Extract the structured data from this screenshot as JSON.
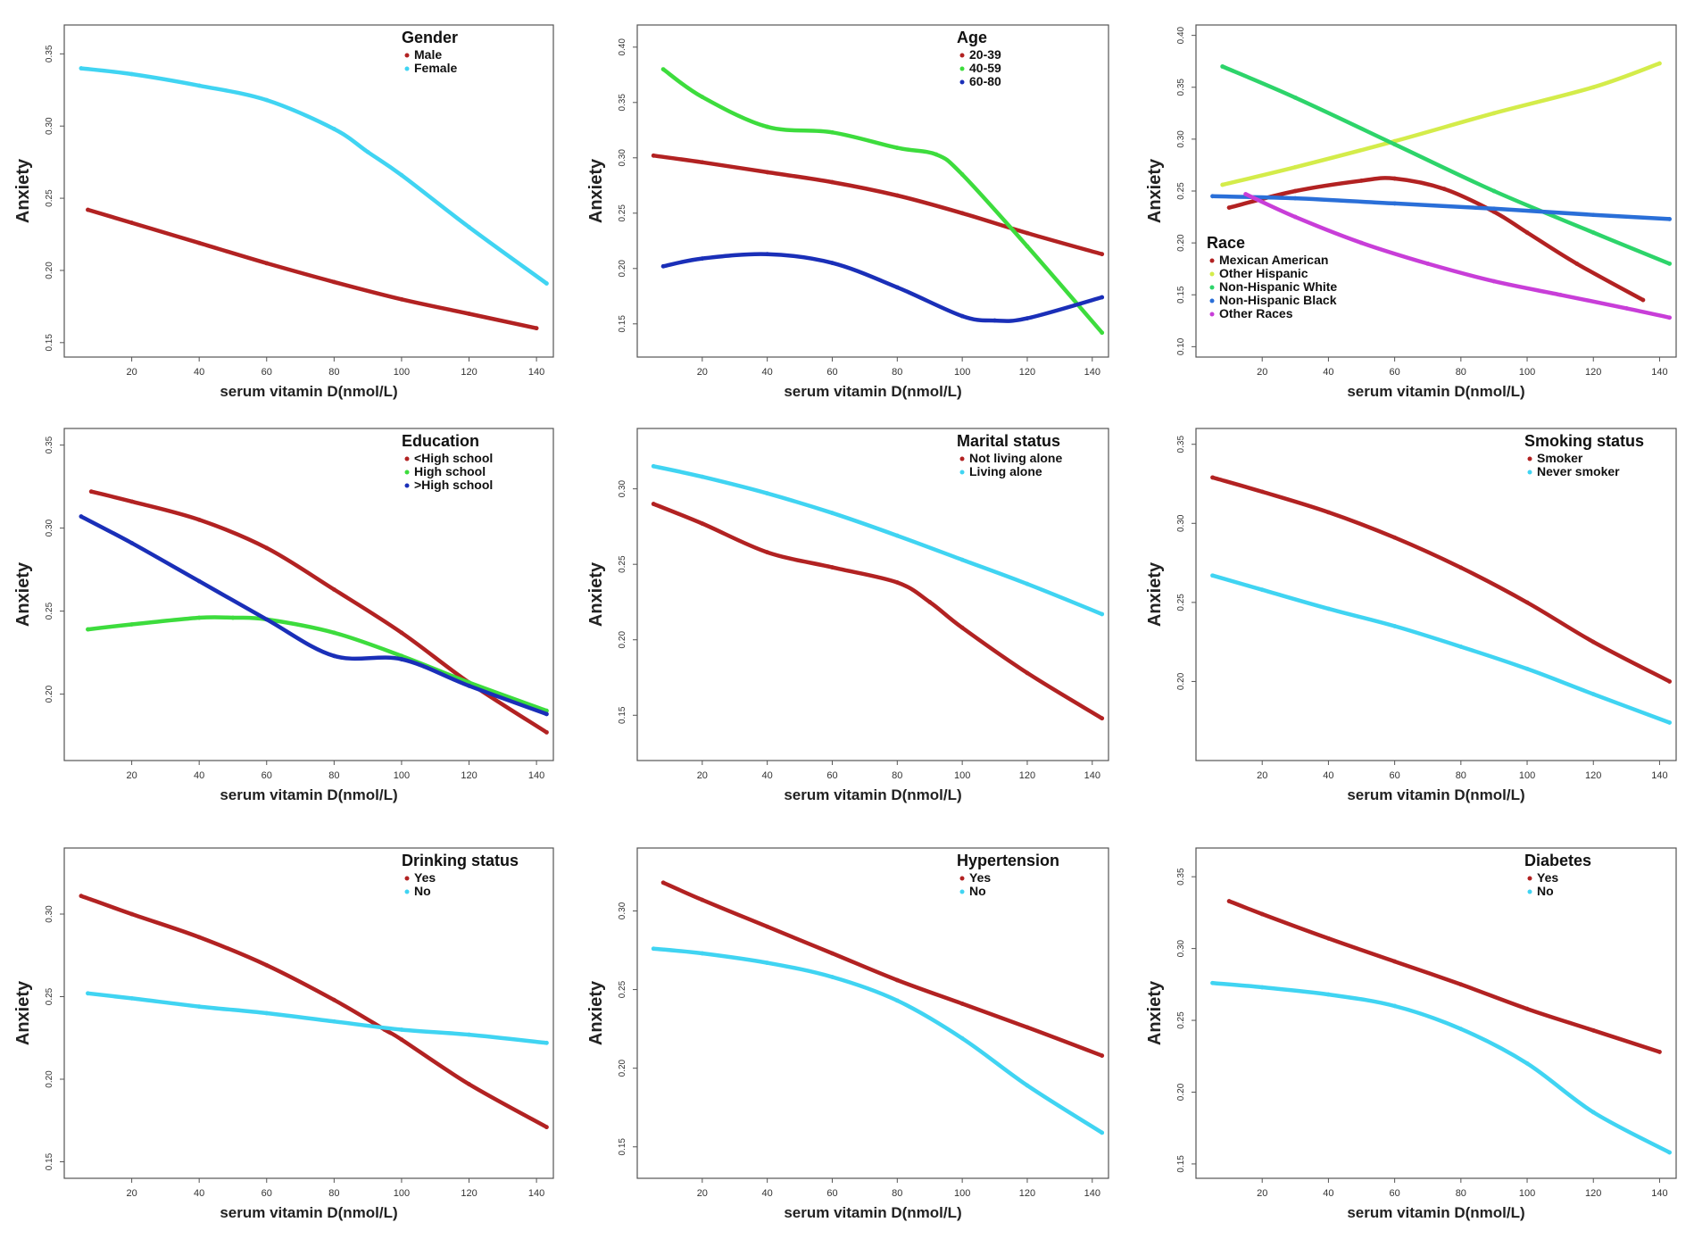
{
  "colors": {
    "red": "#b22222",
    "cyan": "#40d4f2",
    "green": "#3ddc3d",
    "blue": "#1a2fb8",
    "yellowgreen": "#d4ec4a",
    "teal_green": "#2dd46a",
    "mid_blue": "#2a6fd8",
    "magenta": "#c83ed8",
    "frame": "#555555"
  },
  "chart_data": [
    {
      "type": "line",
      "title": "Gender",
      "xlabel": "serum vitamin D(nmol/L)",
      "ylabel": "Anxiety",
      "xlim": [
        0,
        145
      ],
      "ylim": [
        0.14,
        0.37
      ],
      "xticks": [
        "20",
        "40",
        "60",
        "80",
        "100",
        "120",
        "140"
      ],
      "yticks": [
        "0.15",
        "0.20",
        "0.25",
        "0.30",
        "0.35"
      ],
      "legend_position": "top-right",
      "series": [
        {
          "name": "Male",
          "color": "red",
          "x": [
            7,
            20,
            40,
            60,
            80,
            100,
            120,
            140
          ],
          "y": [
            0.242,
            0.233,
            0.219,
            0.205,
            0.192,
            0.18,
            0.17,
            0.16
          ]
        },
        {
          "name": "Female",
          "color": "cyan",
          "x": [
            5,
            20,
            40,
            60,
            80,
            90,
            100,
            120,
            143
          ],
          "y": [
            0.34,
            0.336,
            0.328,
            0.318,
            0.298,
            0.282,
            0.266,
            0.23,
            0.191
          ]
        }
      ]
    },
    {
      "type": "line",
      "title": "Age",
      "xlabel": "serum vitamin D(nmol/L)",
      "ylabel": "Anxiety",
      "xlim": [
        0,
        145
      ],
      "ylim": [
        0.12,
        0.42
      ],
      "xticks": [
        "20",
        "40",
        "60",
        "80",
        "100",
        "120",
        "140"
      ],
      "yticks": [
        "0.15",
        "0.20",
        "0.25",
        "0.30",
        "0.35",
        "0.40"
      ],
      "legend_position": "top-right",
      "series": [
        {
          "name": "20-39",
          "color": "red",
          "x": [
            5,
            20,
            40,
            60,
            80,
            100,
            120,
            143
          ],
          "y": [
            0.302,
            0.296,
            0.287,
            0.278,
            0.266,
            0.25,
            0.232,
            0.213
          ]
        },
        {
          "name": "40-59",
          "color": "green",
          "x": [
            8,
            20,
            40,
            60,
            80,
            92,
            100,
            120,
            143
          ],
          "y": [
            0.38,
            0.355,
            0.328,
            0.323,
            0.309,
            0.303,
            0.285,
            0.22,
            0.142
          ]
        },
        {
          "name": "60-80",
          "color": "blue",
          "x": [
            8,
            20,
            40,
            60,
            80,
            100,
            110,
            120,
            143
          ],
          "y": [
            0.202,
            0.209,
            0.213,
            0.205,
            0.183,
            0.157,
            0.153,
            0.155,
            0.174
          ]
        }
      ]
    },
    {
      "type": "line",
      "title": "Race",
      "xlabel": "serum vitamin D(nmol/L)",
      "ylabel": "Anxiety",
      "xlim": [
        0,
        145
      ],
      "ylim": [
        0.09,
        0.41
      ],
      "xticks": [
        "20",
        "40",
        "60",
        "80",
        "100",
        "120",
        "140"
      ],
      "yticks": [
        "0.10",
        "0.15",
        "0.20",
        "0.25",
        "0.30",
        "0.35",
        "0.40"
      ],
      "legend_position": "bottom-left",
      "series": [
        {
          "name": "Mexican American",
          "color": "red",
          "x": [
            10,
            30,
            50,
            60,
            75,
            90,
            100,
            115,
            135
          ],
          "y": [
            0.234,
            0.25,
            0.26,
            0.262,
            0.252,
            0.23,
            0.21,
            0.18,
            0.145
          ]
        },
        {
          "name": "Other Hispanic",
          "color": "yellowgreen",
          "x": [
            8,
            30,
            60,
            90,
            120,
            140
          ],
          "y": [
            0.256,
            0.273,
            0.298,
            0.325,
            0.35,
            0.373
          ]
        },
        {
          "name": "Non-Hispanic White",
          "color": "teal_green",
          "x": [
            8,
            30,
            60,
            90,
            120,
            143
          ],
          "y": [
            0.37,
            0.34,
            0.295,
            0.25,
            0.21,
            0.18
          ]
        },
        {
          "name": "Non-Hispanic Black",
          "color": "mid_blue",
          "x": [
            5,
            30,
            60,
            90,
            120,
            143
          ],
          "y": [
            0.245,
            0.243,
            0.238,
            0.233,
            0.227,
            0.223
          ]
        },
        {
          "name": "Other Races",
          "color": "magenta",
          "x": [
            15,
            30,
            50,
            70,
            90,
            110,
            130,
            143
          ],
          "y": [
            0.247,
            0.225,
            0.2,
            0.18,
            0.163,
            0.15,
            0.137,
            0.128
          ]
        }
      ]
    },
    {
      "type": "line",
      "title": "Education",
      "xlabel": "serum vitamin D(nmol/L)",
      "ylabel": "Anxiety",
      "xlim": [
        0,
        145
      ],
      "ylim": [
        0.16,
        0.36
      ],
      "xticks": [
        "20",
        "40",
        "60",
        "80",
        "100",
        "120",
        "140"
      ],
      "yticks": [
        "0.20",
        "0.25",
        "0.30",
        "0.35"
      ],
      "legend_position": "top-right",
      "series": [
        {
          "name": "<High school",
          "color": "red",
          "x": [
            8,
            20,
            40,
            60,
            80,
            100,
            120,
            143
          ],
          "y": [
            0.322,
            0.316,
            0.305,
            0.288,
            0.263,
            0.237,
            0.207,
            0.177
          ]
        },
        {
          "name": "High school",
          "color": "green",
          "x": [
            7,
            20,
            40,
            50,
            60,
            80,
            100,
            120,
            143
          ],
          "y": [
            0.239,
            0.242,
            0.246,
            0.246,
            0.245,
            0.237,
            0.223,
            0.207,
            0.19
          ]
        },
        {
          "name": ">High school",
          "color": "blue",
          "x": [
            5,
            20,
            40,
            60,
            80,
            100,
            120,
            143
          ],
          "y": [
            0.307,
            0.291,
            0.268,
            0.245,
            0.223,
            0.221,
            0.205,
            0.188
          ]
        }
      ]
    },
    {
      "type": "line",
      "title": "Marital status",
      "xlabel": "serum vitamin D(nmol/L)",
      "ylabel": "Anxiety",
      "xlim": [
        0,
        145
      ],
      "ylim": [
        0.12,
        0.34
      ],
      "xticks": [
        "20",
        "40",
        "60",
        "80",
        "100",
        "120",
        "140"
      ],
      "yticks": [
        "0.15",
        "0.20",
        "0.25",
        "0.30"
      ],
      "legend_position": "top-right",
      "series": [
        {
          "name": "Not living alone",
          "color": "red",
          "x": [
            5,
            20,
            40,
            60,
            80,
            90,
            100,
            120,
            143
          ],
          "y": [
            0.29,
            0.277,
            0.258,
            0.248,
            0.238,
            0.225,
            0.208,
            0.178,
            0.148
          ]
        },
        {
          "name": "Living alone",
          "color": "cyan",
          "x": [
            5,
            20,
            40,
            60,
            80,
            100,
            120,
            143
          ],
          "y": [
            0.315,
            0.308,
            0.297,
            0.284,
            0.269,
            0.253,
            0.237,
            0.217
          ]
        }
      ]
    },
    {
      "type": "line",
      "title": "Smoking status",
      "xlabel": "serum vitamin D(nmol/L)",
      "ylabel": "Anxiety",
      "xlim": [
        0,
        145
      ],
      "ylim": [
        0.15,
        0.36
      ],
      "xticks": [
        "20",
        "40",
        "60",
        "80",
        "100",
        "120",
        "140"
      ],
      "yticks": [
        "0.20",
        "0.25",
        "0.30",
        "0.35"
      ],
      "legend_position": "top-right",
      "series": [
        {
          "name": "Smoker",
          "color": "red",
          "x": [
            5,
            20,
            40,
            60,
            80,
            100,
            120,
            143
          ],
          "y": [
            0.329,
            0.32,
            0.307,
            0.291,
            0.272,
            0.25,
            0.225,
            0.2
          ]
        },
        {
          "name": "Never smoker",
          "color": "cyan",
          "x": [
            5,
            20,
            40,
            60,
            80,
            100,
            120,
            143
          ],
          "y": [
            0.267,
            0.258,
            0.246,
            0.235,
            0.222,
            0.208,
            0.192,
            0.174
          ]
        }
      ]
    },
    {
      "type": "line",
      "title": "Drinking status",
      "xlabel": "serum vitamin D(nmol/L)",
      "ylabel": "Anxiety",
      "xlim": [
        0,
        145
      ],
      "ylim": [
        0.14,
        0.34
      ],
      "xticks": [
        "20",
        "40",
        "60",
        "80",
        "100",
        "120",
        "140"
      ],
      "yticks": [
        "0.15",
        "0.20",
        "0.25",
        "0.30"
      ],
      "legend_position": "top-right",
      "series": [
        {
          "name": "Yes",
          "color": "red",
          "x": [
            5,
            20,
            40,
            60,
            80,
            95,
            100,
            120,
            143
          ],
          "y": [
            0.311,
            0.3,
            0.286,
            0.269,
            0.248,
            0.23,
            0.224,
            0.197,
            0.171
          ]
        },
        {
          "name": "No",
          "color": "cyan",
          "x": [
            7,
            20,
            40,
            60,
            80,
            100,
            120,
            143
          ],
          "y": [
            0.252,
            0.249,
            0.244,
            0.24,
            0.235,
            0.23,
            0.227,
            0.222
          ]
        }
      ]
    },
    {
      "type": "line",
      "title": "Hypertension",
      "xlabel": "serum vitamin D(nmol/L)",
      "ylabel": "Anxiety",
      "xlim": [
        0,
        145
      ],
      "ylim": [
        0.13,
        0.34
      ],
      "xticks": [
        "20",
        "40",
        "60",
        "80",
        "100",
        "120",
        "140"
      ],
      "yticks": [
        "0.15",
        "0.20",
        "0.25",
        "0.30"
      ],
      "legend_position": "top-right",
      "series": [
        {
          "name": "Yes",
          "color": "red",
          "x": [
            8,
            20,
            40,
            60,
            80,
            100,
            120,
            143
          ],
          "y": [
            0.318,
            0.307,
            0.29,
            0.273,
            0.256,
            0.241,
            0.226,
            0.208
          ]
        },
        {
          "name": "No",
          "color": "cyan",
          "x": [
            5,
            20,
            40,
            60,
            80,
            100,
            120,
            143
          ],
          "y": [
            0.276,
            0.273,
            0.267,
            0.258,
            0.243,
            0.219,
            0.189,
            0.159
          ]
        }
      ]
    },
    {
      "type": "line",
      "title": "Diabetes",
      "xlabel": "serum vitamin D(nmol/L)",
      "ylabel": "Anxiety",
      "xlim": [
        0,
        145
      ],
      "ylim": [
        0.14,
        0.37
      ],
      "xticks": [
        "20",
        "40",
        "60",
        "80",
        "100",
        "120",
        "140"
      ],
      "yticks": [
        "0.15",
        "0.20",
        "0.25",
        "0.30",
        "0.35"
      ],
      "legend_position": "top-right",
      "series": [
        {
          "name": "Yes",
          "color": "red",
          "x": [
            10,
            20,
            40,
            60,
            80,
            100,
            120,
            140
          ],
          "y": [
            0.333,
            0.324,
            0.307,
            0.291,
            0.275,
            0.258,
            0.243,
            0.228
          ]
        },
        {
          "name": "No",
          "color": "cyan",
          "x": [
            5,
            20,
            40,
            60,
            80,
            100,
            120,
            143
          ],
          "y": [
            0.276,
            0.273,
            0.268,
            0.26,
            0.244,
            0.22,
            0.186,
            0.158
          ]
        }
      ]
    }
  ]
}
